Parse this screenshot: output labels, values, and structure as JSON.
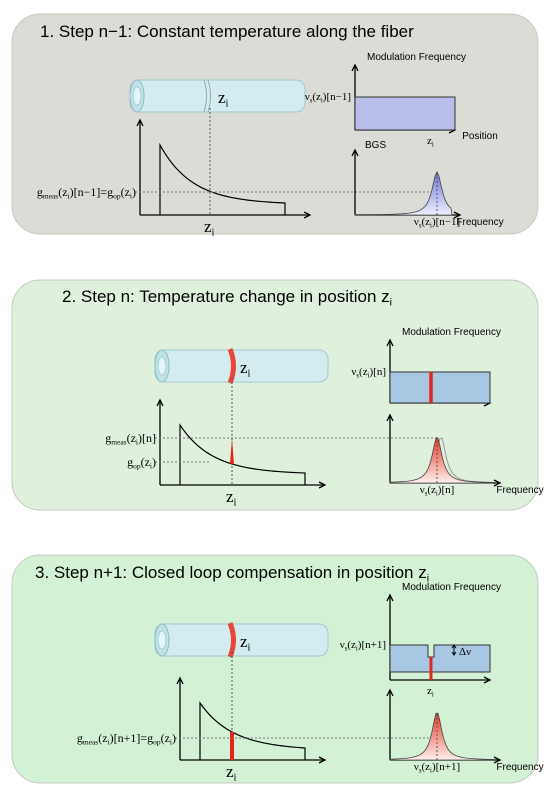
{
  "panels": [
    {
      "title": [
        "1. Step n−1: Constant temperature along the fiber"
      ],
      "fiber_label": [
        "z",
        "i"
      ],
      "axis_label": [
        "z",
        "i"
      ],
      "levels": [
        [
          "g",
          "meas",
          "(z",
          "i",
          ")[n−1]=g",
          "op",
          "(z",
          "i",
          ")"
        ]
      ],
      "modulation": {
        "title": "Modulation Frequency",
        "value_label": [
          "ν",
          "s",
          "(z",
          "i",
          ")[n−1]"
        ],
        "position_label": [
          "z",
          "i"
        ],
        "x_label": "Position"
      },
      "bgs": {
        "title": "BGS",
        "peak_label": [
          "ν",
          "s",
          "(z",
          "i",
          ")[n−1]"
        ],
        "x_label": "Frequency"
      }
    },
    {
      "title": [
        "2. Step n: Temperature change in position z",
        "i"
      ],
      "fiber_label": [
        "z",
        "i"
      ],
      "axis_label": [
        "z",
        "i"
      ],
      "levels": [
        [
          "g",
          "meas",
          "(z",
          "i",
          ")[n]"
        ],
        [
          "g",
          "op",
          "(z",
          "i",
          ")"
        ]
      ],
      "modulation": {
        "title": "Modulation Frequency",
        "value_label": [
          "ν",
          "s",
          "(z",
          "i",
          ")[n]"
        ]
      },
      "bgs": {
        "peak_label": [
          "ν",
          "s",
          "(z",
          "i",
          ")[n]"
        ],
        "x_label": "Frequency"
      }
    },
    {
      "title": [
        "3. Step n+1: Closed loop compensation in position z",
        "i"
      ],
      "fiber_label": [
        "z",
        "i"
      ],
      "axis_label": [
        "z",
        "i"
      ],
      "levels": [
        [
          "g",
          "meas",
          "(z",
          "i",
          ")[n+1]=g",
          "op",
          "(z",
          "i",
          ")"
        ]
      ],
      "modulation": {
        "title": "Modulation Frequency",
        "value_label": [
          "ν",
          "s",
          "(z",
          "i",
          ")[n+1]"
        ],
        "position_label": [
          "z",
          "i"
        ],
        "delta": "Δν"
      },
      "bgs": {
        "peak_label": [
          "ν",
          "s",
          "(z",
          "i",
          ")[n+1]"
        ],
        "x_label": "Frequency"
      }
    }
  ]
}
